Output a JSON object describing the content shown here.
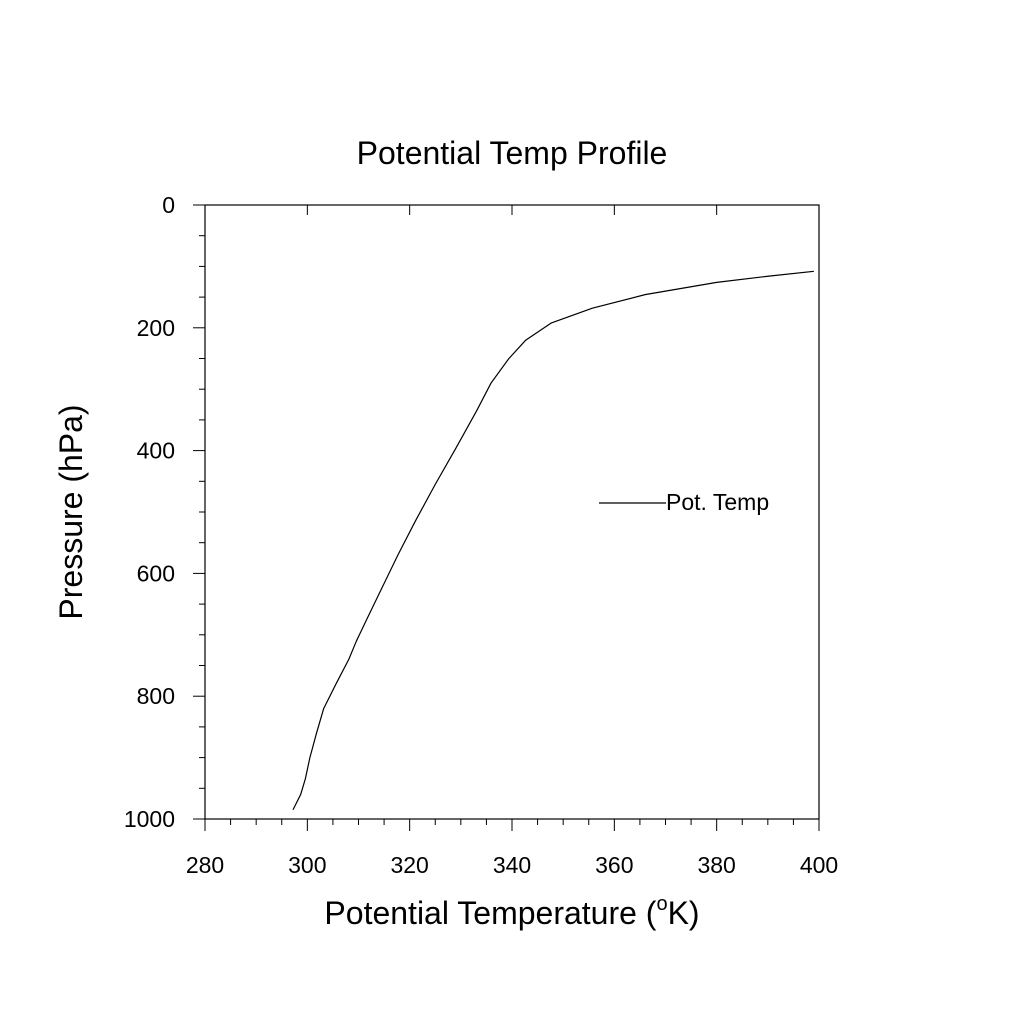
{
  "chart_data": {
    "type": "line",
    "title": "Potential Temp Profile",
    "xlabel": {
      "prefix": "Potential Temperature (",
      "superscript": "o",
      "suffix": "K)"
    },
    "ylabel": "Pressure (hPa)",
    "xlim": [
      280,
      400
    ],
    "ylim": [
      0,
      1000
    ],
    "y_inverted": true,
    "x_ticks": [
      280,
      300,
      320,
      340,
      360,
      380,
      400
    ],
    "x_tick_labels": [
      "280",
      "300",
      "320",
      "340",
      "360",
      "380",
      "400"
    ],
    "y_ticks": [
      0,
      200,
      400,
      600,
      800,
      1000
    ],
    "y_tick_labels": [
      "0",
      "200",
      "400",
      "600",
      "800",
      "1000"
    ],
    "grid": false,
    "legend": {
      "placement": "right",
      "entries": [
        "Pot. Temp"
      ]
    },
    "series": [
      {
        "name": "Pot. Temp",
        "color": "#000000",
        "x": [
          297.2,
          297.8,
          298.7,
          299.6,
          300.5,
          301.8,
          303.2,
          305.6,
          308.1,
          309.6,
          311.6,
          314.5,
          317.7,
          321.1,
          325.0,
          329.1,
          333.1,
          335.9,
          339.4,
          342.7,
          347.7,
          355.7,
          366.0,
          380.0,
          390.0,
          399.0
        ],
        "y": [
          985,
          975,
          960,
          935,
          900,
          860,
          820,
          780,
          740,
          710,
          675,
          625,
          570,
          515,
          455,
          395,
          335,
          290,
          250,
          220,
          192,
          168,
          146,
          126,
          116,
          108
        ]
      }
    ]
  }
}
